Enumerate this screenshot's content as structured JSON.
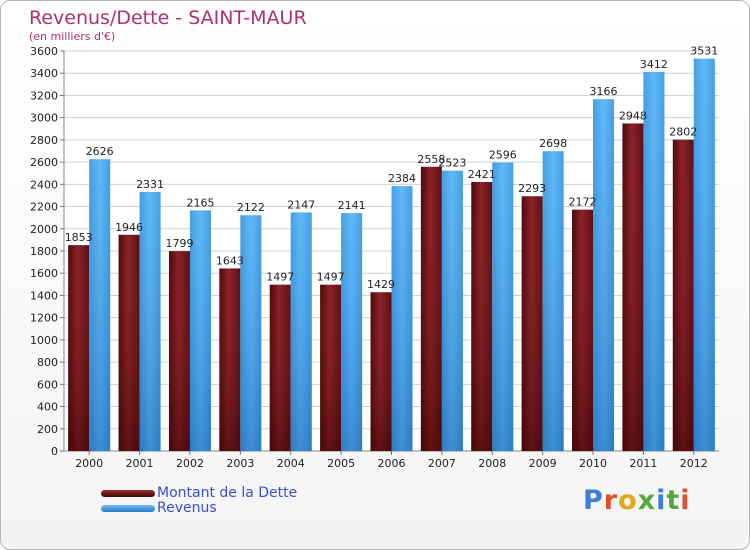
{
  "header": {
    "title": "Revenus/Dette - SAINT-MAUR",
    "subtitle": "(en milliers d'€)"
  },
  "brand": {
    "logo_text": "Proxiti",
    "letter_colors": [
      "#3c7ed8",
      "#e0502a",
      "#e2a61d",
      "#57a83a",
      "#3c7ed8",
      "#57a83a",
      "#e0502a"
    ]
  },
  "colors": {
    "dette": "#7a1818",
    "revenus": "#3d97e0",
    "value_labels": "#222222",
    "legend_text": "#3a4fd0",
    "title": "#b0306a"
  },
  "chart_data": {
    "type": "bar",
    "title": "Revenus/Dette - SAINT-MAUR",
    "subtitle": "(en milliers d'€)",
    "categories": [
      "2000",
      "2001",
      "2002",
      "2003",
      "2004",
      "2005",
      "2006",
      "2007",
      "2008",
      "2009",
      "2010",
      "2011",
      "2012"
    ],
    "series": [
      {
        "name": "Montant de la Dette",
        "values": [
          1853,
          1946,
          1799,
          1643,
          1497,
          1497,
          1429,
          2558,
          2421,
          2293,
          2172,
          2948,
          2802
        ],
        "labels": [
          "1853",
          "1946",
          "1799",
          "1643",
          "1497",
          "1497",
          "1429",
          "2558",
          "2421",
          "2293",
          "2172",
          "2948",
          "2802"
        ]
      },
      {
        "name": "Revenus",
        "values": [
          2626,
          2331,
          2165,
          2122,
          2147,
          2141,
          2384,
          2523,
          2596,
          2698,
          3166,
          3412,
          3531
        ],
        "labels": [
          "2626",
          "2331",
          "2165",
          "2122",
          "2147",
          "2141",
          "2384",
          "2523",
          "2596",
          "2698",
          "3166",
          "3412",
          "3531"
        ]
      }
    ],
    "ylim": [
      0,
      3600
    ],
    "yticks": [
      0,
      200,
      400,
      600,
      800,
      1000,
      1200,
      1400,
      1600,
      1800,
      2000,
      2200,
      2400,
      2600,
      2800,
      3000,
      3200,
      3400,
      3600
    ],
    "grid": true,
    "legend": {
      "position": "bottom-left",
      "entries": [
        "Montant de la Dette",
        "Revenus"
      ]
    }
  }
}
